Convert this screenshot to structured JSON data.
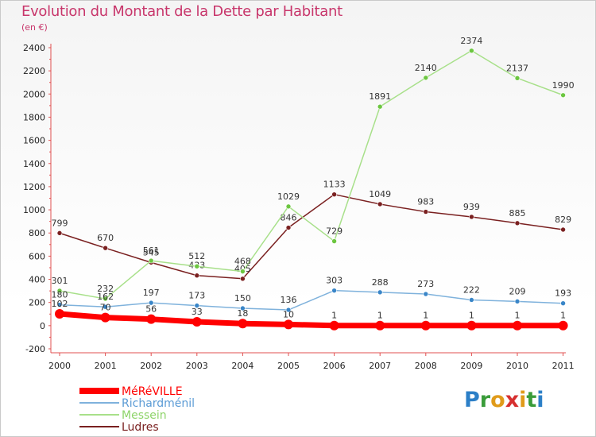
{
  "title": "Evolution du Montant de la Dette par Habitant",
  "subtitle": "(en €)",
  "logo_text": "Proxiti",
  "chart_data": {
    "type": "line",
    "title": "Evolution du Montant de la Dette par Habitant",
    "subtitle": "(en €)",
    "x": [
      "2000",
      "2001",
      "2002",
      "2003",
      "2004",
      "2005",
      "2006",
      "2007",
      "2008",
      "2009",
      "2010",
      "2011"
    ],
    "ylim": [
      -200,
      2400
    ],
    "yticks": [
      -200,
      0,
      200,
      400,
      600,
      800,
      1000,
      1200,
      1400,
      1600,
      1800,
      2000,
      2200,
      2400
    ],
    "grid": false,
    "legend_position": "bottom-left",
    "series": [
      {
        "name": "Ludres",
        "color": "#7a2020",
        "values": [
          799,
          670,
          545,
          433,
          405,
          846,
          1133,
          1049,
          983,
          939,
          885,
          829
        ]
      },
      {
        "name": "Messein",
        "color": "#8ed46a",
        "values": [
          301,
          232,
          561,
          512,
          468,
          1029,
          729,
          1891,
          2140,
          2374,
          2137,
          1990
        ]
      },
      {
        "name": "Richardménil",
        "color": "#5b9bd5",
        "values": [
          180,
          162,
          197,
          173,
          150,
          136,
          303,
          288,
          273,
          222,
          209,
          193
        ]
      },
      {
        "name": "MéRéVILLE",
        "color": "#ff0000",
        "values": [
          102,
          70,
          56,
          33,
          18,
          10,
          1,
          1,
          1,
          1,
          1,
          1
        ]
      }
    ]
  }
}
